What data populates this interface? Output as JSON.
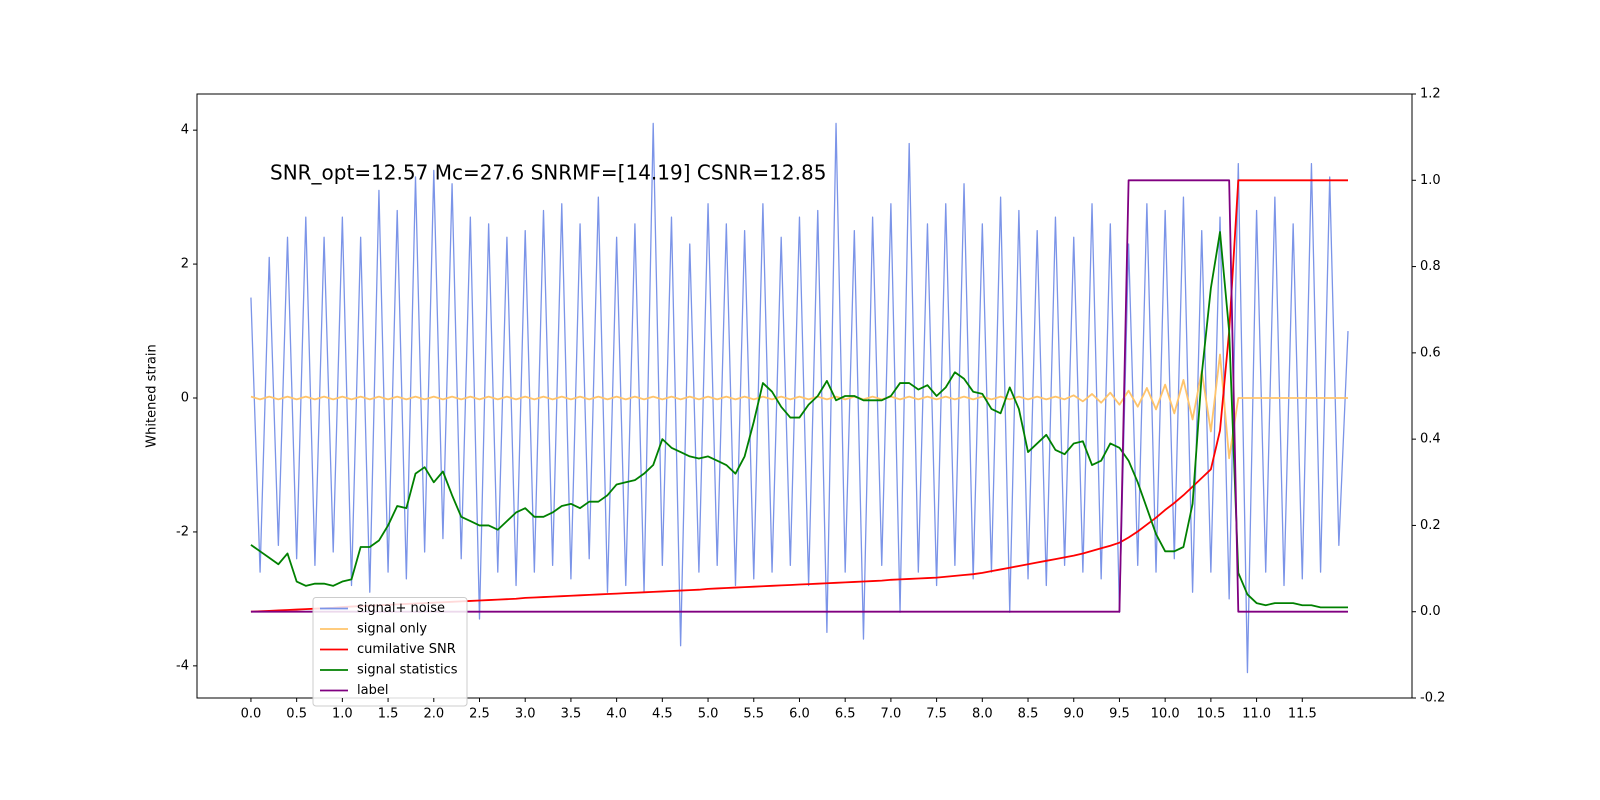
{
  "chart_data": {
    "type": "line",
    "annotation": "SNR_opt=12.57 Mc=27.6    SNRMF=[14.19] CSNR=12.85",
    "ylabel": "Whitened strain",
    "legend": "lower left",
    "xlim": [
      -0.59,
      12.7
    ],
    "ylim": [
      -4.48,
      4.54
    ],
    "y2lim": [
      -0.2,
      1.2
    ],
    "xticks": [
      {
        "value": 0,
        "label": "0.0"
      },
      0.5,
      {
        "value": 1,
        "label": "1.0"
      },
      1.5,
      {
        "value": 2,
        "label": "2.0"
      },
      2.5,
      {
        "value": 3,
        "label": "3.0"
      },
      3.5,
      {
        "value": 4,
        "label": "4.0"
      },
      4.5,
      {
        "value": 5,
        "label": "5.0"
      },
      5.5,
      {
        "value": 6,
        "label": "6.0"
      },
      6.5,
      {
        "value": 7,
        "label": "7.0"
      },
      7.5,
      {
        "value": 8,
        "label": "8.0"
      },
      8.5,
      {
        "value": 9,
        "label": "9.0"
      },
      9.5,
      {
        "value": 10,
        "label": "10.0"
      },
      10.5,
      {
        "value": 11,
        "label": "11.0"
      },
      11.5
    ],
    "yticks": [
      -4,
      -2,
      0,
      2,
      4
    ],
    "y2ticks": [
      -0.2,
      {
        "value": 0,
        "label": "0.0"
      },
      0.2,
      0.4,
      0.6,
      0.8,
      {
        "value": 1,
        "label": "1.0"
      },
      1.2
    ],
    "x": [
      0,
      0.1,
      0.2,
      0.3,
      0.4,
      0.5,
      0.6,
      0.7,
      0.8,
      0.9,
      1,
      1.1,
      1.2,
      1.3,
      1.4,
      1.5,
      1.6,
      1.7,
      1.8,
      1.9,
      2,
      2.1,
      2.2,
      2.3,
      2.4,
      2.5,
      2.6,
      2.7,
      2.8,
      2.9,
      3,
      3.1,
      3.2,
      3.3,
      3.4,
      3.5,
      3.6,
      3.7,
      3.8,
      3.9,
      4,
      4.1,
      4.2,
      4.3,
      4.4,
      4.5,
      4.6,
      4.7,
      4.8,
      4.9,
      5,
      5.1,
      5.2,
      5.3,
      5.4,
      5.5,
      5.6,
      5.7,
      5.8,
      5.9,
      6,
      6.1,
      6.2,
      6.3,
      6.4,
      6.5,
      6.6,
      6.7,
      6.8,
      6.9,
      7,
      7.1,
      7.2,
      7.3,
      7.4,
      7.5,
      7.6,
      7.7,
      7.8,
      7.9,
      8,
      8.1,
      8.2,
      8.3,
      8.4,
      8.5,
      8.6,
      8.7,
      8.8,
      8.9,
      9,
      9.1,
      9.2,
      9.3,
      9.4,
      9.5,
      9.6,
      9.7,
      9.8,
      9.9,
      10,
      10.1,
      10.2,
      10.3,
      10.4,
      10.5,
      10.6,
      10.7,
      10.8,
      10.9,
      11,
      11.1,
      11.2,
      11.3,
      11.4,
      11.5,
      11.6,
      11.7,
      11.8,
      11.9,
      12
    ],
    "series": [
      {
        "name": "signal+ noise",
        "color": "#7b94e8",
        "values": [
          1.5,
          -2.6,
          2.1,
          -2.2,
          2.4,
          -2.4,
          2.7,
          -2.5,
          2.4,
          -2.3,
          2.7,
          -2.8,
          2.4,
          -2.9,
          3.1,
          -2.6,
          2.8,
          -2.7,
          3.3,
          -2.3,
          3.4,
          -2.1,
          3.2,
          -2.4,
          2.7,
          -3.3,
          2.6,
          -2.6,
          2.4,
          -2.8,
          2.5,
          -2.6,
          2.8,
          -2.5,
          2.9,
          -2.7,
          2.6,
          -2.4,
          3.0,
          -2.9,
          2.4,
          -2.8,
          2.6,
          -2.9,
          4.1,
          -2.5,
          2.7,
          -3.7,
          2.3,
          -2.6,
          2.9,
          -2.5,
          2.6,
          -2.8,
          2.5,
          -2.7,
          2.9,
          -2.6,
          2.4,
          -2.5,
          2.7,
          -2.8,
          2.8,
          -3.5,
          4.1,
          -2.6,
          2.5,
          -3.6,
          2.7,
          -2.5,
          2.9,
          -3.2,
          3.8,
          -2.6,
          2.6,
          -2.8,
          2.9,
          -2.5,
          3.2,
          -2.7,
          2.6,
          -2.6,
          3.0,
          -3.2,
          2.8,
          -2.7,
          2.5,
          -2.8,
          2.7,
          -2.5,
          2.4,
          -2.6,
          2.9,
          -2.7,
          2.6,
          -3.2,
          2.3,
          -2.5,
          2.9,
          -2.6,
          2.8,
          -2.4,
          3.0,
          -2.9,
          2.5,
          -2.6,
          2.7,
          -3.0,
          3.5,
          -4.1,
          2.8,
          -2.6,
          3.0,
          -2.8,
          2.6,
          -2.7,
          3.5,
          -2.6,
          3.3,
          -2.2,
          1.0
        ]
      },
      {
        "name": "signal only",
        "color": "#ffc46b",
        "values": [
          0.02,
          -0.02,
          0.02,
          -0.02,
          0.02,
          -0.02,
          0.02,
          -0.02,
          0.02,
          -0.02,
          0.02,
          -0.02,
          0.02,
          -0.02,
          0.02,
          -0.02,
          0.02,
          -0.02,
          0.02,
          -0.02,
          0.02,
          -0.02,
          0.02,
          -0.02,
          0.02,
          -0.02,
          0.02,
          -0.02,
          0.02,
          -0.02,
          0.02,
          -0.02,
          0.02,
          -0.02,
          0.02,
          -0.02,
          0.02,
          -0.02,
          0.02,
          -0.02,
          0.02,
          -0.02,
          0.02,
          -0.02,
          0.02,
          -0.02,
          0.02,
          -0.02,
          0.02,
          -0.02,
          0.02,
          -0.02,
          0.02,
          -0.02,
          0.02,
          -0.02,
          0.02,
          -0.02,
          0.02,
          -0.02,
          0.02,
          -0.02,
          0.02,
          -0.02,
          0.02,
          -0.02,
          0.02,
          -0.02,
          0.02,
          -0.02,
          0.02,
          -0.02,
          0.02,
          -0.02,
          0.02,
          -0.02,
          0.02,
          -0.02,
          0.02,
          -0.02,
          0.02,
          -0.02,
          0.02,
          -0.02,
          0.02,
          -0.02,
          0.02,
          -0.02,
          0.02,
          -0.02,
          0.04,
          -0.05,
          0.06,
          -0.07,
          0.08,
          -0.1,
          0.11,
          -0.13,
          0.15,
          -0.17,
          0.2,
          -0.23,
          0.27,
          -0.32,
          0.4,
          -0.5,
          0.65,
          -0.9,
          0,
          0,
          0,
          0,
          0,
          0,
          0,
          0,
          0,
          0,
          0,
          0,
          0
        ]
      },
      {
        "name": "cumilative SNR",
        "color": "#ff0000",
        "axis": "y2",
        "values": [
          0,
          0.001,
          0.002,
          0.003,
          0.004,
          0.005,
          0.006,
          0.007,
          0.008,
          0.009,
          0.011,
          0.012,
          0.013,
          0.014,
          0.015,
          0.016,
          0.017,
          0.018,
          0.019,
          0.02,
          0.021,
          0.022,
          0.023,
          0.024,
          0.025,
          0.026,
          0.027,
          0.028,
          0.029,
          0.03,
          0.032,
          0.033,
          0.034,
          0.035,
          0.036,
          0.037,
          0.038,
          0.039,
          0.04,
          0.041,
          0.042,
          0.043,
          0.044,
          0.045,
          0.046,
          0.047,
          0.048,
          0.049,
          0.05,
          0.051,
          0.053,
          0.054,
          0.055,
          0.056,
          0.057,
          0.058,
          0.059,
          0.06,
          0.061,
          0.062,
          0.063,
          0.064,
          0.065,
          0.066,
          0.067,
          0.068,
          0.069,
          0.07,
          0.071,
          0.072,
          0.074,
          0.075,
          0.076,
          0.077,
          0.078,
          0.079,
          0.081,
          0.083,
          0.085,
          0.087,
          0.09,
          0.094,
          0.098,
          0.102,
          0.106,
          0.11,
          0.114,
          0.118,
          0.122,
          0.126,
          0.13,
          0.135,
          0.141,
          0.147,
          0.153,
          0.16,
          0.172,
          0.186,
          0.202,
          0.218,
          0.236,
          0.252,
          0.27,
          0.29,
          0.31,
          0.33,
          0.42,
          0.65,
          1.0,
          1.0,
          1.0,
          1.0,
          1.0,
          1.0,
          1.0,
          1.0,
          1.0,
          1.0,
          1.0,
          1.0,
          1.0
        ]
      },
      {
        "name": "signal statistics",
        "color": "#008000",
        "axis": "y2",
        "values": [
          0.155,
          0.14,
          0.125,
          0.11,
          0.135,
          0.07,
          0.06,
          0.065,
          0.065,
          0.06,
          0.07,
          0.075,
          0.15,
          0.15,
          0.165,
          0.2,
          0.245,
          0.24,
          0.32,
          0.335,
          0.3,
          0.325,
          0.27,
          0.22,
          0.21,
          0.2,
          0.2,
          0.19,
          0.21,
          0.23,
          0.24,
          0.22,
          0.22,
          0.23,
          0.245,
          0.25,
          0.24,
          0.255,
          0.255,
          0.27,
          0.295,
          0.3,
          0.305,
          0.32,
          0.34,
          0.4,
          0.38,
          0.37,
          0.36,
          0.355,
          0.36,
          0.35,
          0.34,
          0.32,
          0.36,
          0.44,
          0.53,
          0.51,
          0.475,
          0.45,
          0.45,
          0.48,
          0.5,
          0.535,
          0.49,
          0.5,
          0.5,
          0.49,
          0.49,
          0.49,
          0.5,
          0.53,
          0.53,
          0.515,
          0.525,
          0.5,
          0.52,
          0.555,
          0.54,
          0.51,
          0.505,
          0.47,
          0.46,
          0.52,
          0.47,
          0.37,
          0.39,
          0.41,
          0.375,
          0.365,
          0.39,
          0.395,
          0.34,
          0.35,
          0.39,
          0.38,
          0.35,
          0.3,
          0.24,
          0.18,
          0.14,
          0.14,
          0.15,
          0.25,
          0.55,
          0.75,
          0.88,
          0.65,
          0.09,
          0.04,
          0.02,
          0.015,
          0.02,
          0.02,
          0.02,
          0.015,
          0.015,
          0.01,
          0.01,
          0.01,
          0.01
        ]
      },
      {
        "name": "label",
        "color": "#800080",
        "axis": "y2",
        "values": [
          0,
          0,
          0,
          0,
          0,
          0,
          0,
          0,
          0,
          0,
          0,
          0,
          0,
          0,
          0,
          0,
          0,
          0,
          0,
          0,
          0,
          0,
          0,
          0,
          0,
          0,
          0,
          0,
          0,
          0,
          0,
          0,
          0,
          0,
          0,
          0,
          0,
          0,
          0,
          0,
          0,
          0,
          0,
          0,
          0,
          0,
          0,
          0,
          0,
          0,
          0,
          0,
          0,
          0,
          0,
          0,
          0,
          0,
          0,
          0,
          0,
          0,
          0,
          0,
          0,
          0,
          0,
          0,
          0,
          0,
          0,
          0,
          0,
          0,
          0,
          0,
          0,
          0,
          0,
          0,
          0,
          0,
          0,
          0,
          0,
          0,
          0,
          0,
          0,
          0,
          0,
          0,
          0,
          0,
          0,
          0,
          1,
          1,
          1,
          1,
          1,
          1,
          1,
          1,
          1,
          1,
          1,
          1,
          0,
          0,
          0,
          0,
          0,
          0,
          0,
          0,
          0,
          0,
          0,
          0,
          0
        ]
      }
    ]
  }
}
